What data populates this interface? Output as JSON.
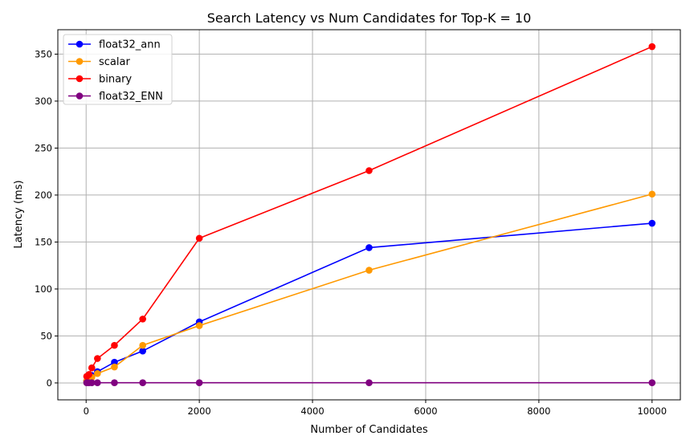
{
  "chart_data": {
    "type": "line",
    "title": "Search Latency vs Num Candidates for Top-K = 10",
    "xlabel": "Number of Candidates",
    "ylabel": "Latency (ms)",
    "xlim": [
      -500,
      10500
    ],
    "ylim": [
      -18,
      376
    ],
    "xticks": [
      0,
      2000,
      4000,
      6000,
      8000,
      10000
    ],
    "yticks": [
      0,
      50,
      100,
      150,
      200,
      250,
      300,
      350
    ],
    "grid": true,
    "legend_position": "top-left",
    "x": [
      10,
      50,
      100,
      200,
      500,
      1000,
      2000,
      5000,
      10000
    ],
    "series": [
      {
        "name": "float32_ann",
        "color": "#0000ff",
        "values": [
          2,
          5,
          8,
          12,
          22,
          34,
          65,
          144,
          170
        ]
      },
      {
        "name": "scalar",
        "color": "#ff9900",
        "values": [
          2,
          4,
          6,
          10,
          17,
          40,
          61,
          120,
          201
        ]
      },
      {
        "name": "binary",
        "color": "#ff0000",
        "values": [
          7,
          9,
          16,
          26,
          40,
          68,
          154,
          226,
          358
        ]
      },
      {
        "name": "float32_ENN",
        "color": "#800080",
        "values": [
          0.2,
          0.2,
          0.2,
          0.2,
          0.2,
          0.2,
          0.2,
          0.2,
          0.2
        ]
      }
    ]
  }
}
